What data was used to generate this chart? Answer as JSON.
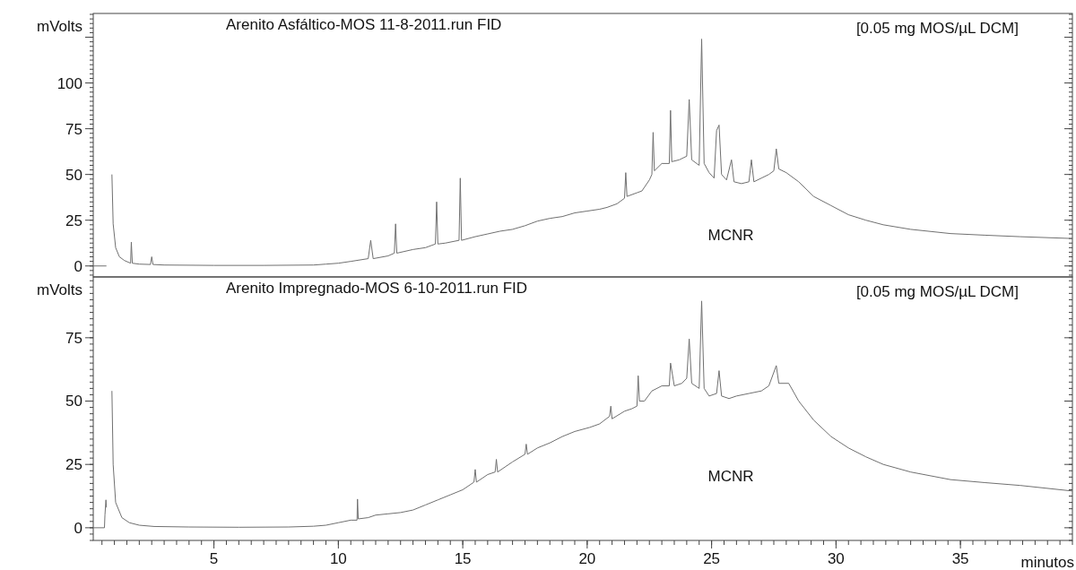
{
  "chart_data": [
    {
      "type": "line",
      "title": "Arenito Asfáltico-MOS 11-8-2011.run FID",
      "subtitle": "[0.05 mg MOS/µL DCM]",
      "ylabel": "mVolts",
      "annotations": [
        "MCNR"
      ],
      "series": [
        {
          "color": "#707070",
          "x": [
            0.15,
            0.68,
            0.7,
            0.86,
            0.9,
            0.95,
            1.05,
            1.2,
            1.4,
            1.65,
            1.68,
            1.72,
            2.0,
            2.45,
            2.5,
            2.55,
            3,
            5,
            7,
            9,
            9.5,
            10,
            10.5,
            11.2,
            11.3,
            11.4,
            12,
            12.25,
            12.3,
            12.35,
            13,
            13.5,
            13.9,
            13.95,
            14,
            14.3,
            14.85,
            14.9,
            14.95,
            15.5,
            16,
            16.5,
            17,
            17.5,
            18,
            18.5,
            19,
            19.5,
            20,
            20.5,
            20.8,
            21.2,
            21.5,
            21.55,
            21.6,
            22,
            22.2,
            22.5,
            22.6,
            22.65,
            22.7,
            23,
            23.3,
            23.35,
            23.4,
            23.7,
            24,
            24.1,
            24.2,
            24.5,
            24.6,
            24.7,
            24.9,
            25.1,
            25.2,
            25.3,
            25.4,
            25.6,
            25.8,
            25.9,
            26.2,
            26.5,
            26.6,
            26.7,
            27,
            27.3,
            27.5,
            27.6,
            27.7,
            28.0,
            28.5,
            29.1,
            29.8,
            30.5,
            31.2,
            31.9,
            33,
            34.6,
            36,
            37.4,
            39.5
          ],
          "values": [
            0,
            0,
            null,
            null,
            50,
            23,
            10,
            5,
            3,
            1.5,
            13,
            1.5,
            1,
            0.8,
            5,
            0.8,
            0.5,
            0.3,
            0.3,
            0.5,
            1,
            1.5,
            2.5,
            4,
            14,
            4,
            5.5,
            7,
            23,
            7,
            9,
            10,
            12,
            35,
            12,
            12.5,
            14,
            48,
            14,
            16,
            17.5,
            19,
            20,
            22,
            24.5,
            26,
            27,
            29,
            30,
            31,
            32,
            34,
            37,
            51,
            38,
            40,
            41,
            47,
            50,
            73,
            52,
            56,
            56,
            85,
            57,
            58,
            60,
            91,
            58,
            55,
            124,
            56,
            51,
            48,
            74,
            77,
            50,
            47,
            58,
            46,
            45,
            46,
            58,
            46,
            48,
            50,
            52,
            64,
            53,
            51,
            46,
            38,
            33,
            28,
            25,
            22.5,
            20,
            17.7,
            16.8,
            16,
            15
          ]
        }
      ],
      "xlim": [
        0.15,
        39.5
      ],
      "xticks": [
        5,
        10,
        15,
        20,
        25,
        30,
        35
      ],
      "ylim": [
        -6,
        138
      ],
      "yticks": [
        0,
        25,
        50,
        75,
        100,
        {
          "value": 125,
          "label": null
        }
      ],
      "tick_labels": "y"
    },
    {
      "type": "line",
      "title": "Arenito Impregnado-MOS 6-10-2011.run FID",
      "subtitle": "[0.05 mg MOS/µL DCM]",
      "ylabel": "mVolts",
      "xlabel": "minutos",
      "annotations": [
        "MCNR"
      ],
      "series": [
        {
          "color": "#707070",
          "x": [
            0.15,
            0.6,
            0.62,
            0.66,
            0.68,
            0.7,
            0.86,
            0.9,
            0.95,
            1.05,
            1.3,
            1.6,
            2,
            2.6,
            4,
            6,
            8,
            9,
            9.5,
            10,
            10.5,
            10.75,
            10.77,
            10.8,
            11.2,
            11.5,
            12,
            12.5,
            13,
            13.5,
            14,
            14.5,
            15,
            15.45,
            15.5,
            15.55,
            16,
            16.3,
            16.35,
            16.4,
            17,
            17.5,
            17.55,
            17.6,
            18,
            18.5,
            19,
            19.5,
            20.1,
            20.5,
            20.9,
            20.95,
            21,
            21.5,
            21.8,
            22,
            22.05,
            22.1,
            22.3,
            22.6,
            23,
            23.3,
            23.35,
            23.5,
            23.8,
            24,
            24.1,
            24.2,
            24.5,
            24.6,
            24.7,
            24.9,
            25.2,
            25.3,
            25.4,
            25.7,
            26,
            26.5,
            27,
            27.3,
            27.6,
            27.7,
            28.1,
            28.5,
            29.1,
            29.8,
            30.5,
            31.2,
            31.9,
            33,
            34.6,
            36,
            37.4,
            39.5
          ],
          "values": [
            0,
            0,
            5,
            11,
            8,
            null,
            null,
            54,
            25,
            10,
            4,
            2,
            1,
            0.5,
            0.3,
            0.2,
            0.3,
            0.6,
            1,
            2,
            3,
            3,
            11.3,
            3.5,
            4,
            5,
            5.5,
            6,
            7,
            9,
            11,
            13,
            15,
            18,
            23,
            18,
            21,
            22,
            27,
            22,
            26,
            29,
            33,
            29,
            31.5,
            33.5,
            36,
            38,
            39.6,
            41,
            44,
            48,
            43,
            46,
            47,
            48,
            60,
            50,
            50,
            54,
            56,
            56,
            65,
            56,
            57,
            59,
            74.5,
            57,
            55,
            89.5,
            55,
            52,
            53,
            62,
            52,
            51,
            52,
            53,
            54,
            56,
            64,
            57,
            57,
            50,
            42.5,
            36,
            31.5,
            28,
            25,
            22,
            19,
            17.8,
            16.7,
            14.5
          ]
        }
      ],
      "xlim": [
        0.15,
        39.5
      ],
      "xticks": [
        5,
        10,
        15,
        20,
        25,
        30,
        35
      ],
      "ylim": [
        -5,
        99
      ],
      "yticks": [
        0,
        25,
        50,
        75
      ]
    }
  ]
}
